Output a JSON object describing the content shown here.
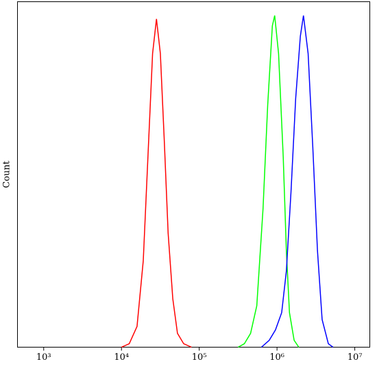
{
  "chart_data": {
    "type": "line",
    "y_label": "Count",
    "xscale": "log",
    "xlim": [
      460,
      15600000
    ],
    "ylim": [
      0,
      100
    ],
    "xticks": [
      {
        "value": 1000,
        "label": "10³"
      },
      {
        "value": 10000,
        "label": "10⁴"
      },
      {
        "value": 100000,
        "label": "10⁵"
      },
      {
        "value": 1000000,
        "label": "10⁶"
      },
      {
        "value": 10000000,
        "label": "10⁷"
      }
    ],
    "series": [
      {
        "color": "#ff0000",
        "x": [
          10000,
          12589,
          15849,
          19055,
          21878,
          25119,
          28184,
          31623,
          35481,
          39811,
          45709,
          52481,
          63096,
          79433
        ],
        "values": [
          0,
          1,
          6,
          25,
          55,
          85,
          95,
          85,
          60,
          33,
          14,
          4,
          1,
          0
        ]
      },
      {
        "color": "#00ff00",
        "x": [
          316228,
          380189,
          457088,
          549541,
          660693,
          758578,
          870964,
          933254,
          1047129,
          1202264,
          1318257,
          1445440,
          1659587,
          1905461
        ],
        "values": [
          0,
          1,
          4,
          12,
          40,
          70,
          93,
          96,
          85,
          55,
          28,
          10,
          2,
          0
        ]
      },
      {
        "color": "#0000ff",
        "x": [
          630957,
          794328,
          954993,
          1148154,
          1318257,
          1513561,
          1737801,
          1995262,
          2187762,
          2511886,
          2884032,
          3311311,
          3801894,
          4570882,
          5248075
        ],
        "values": [
          0,
          2,
          5,
          10,
          22,
          45,
          72,
          90,
          96,
          85,
          58,
          28,
          8,
          1,
          0
        ]
      }
    ]
  }
}
